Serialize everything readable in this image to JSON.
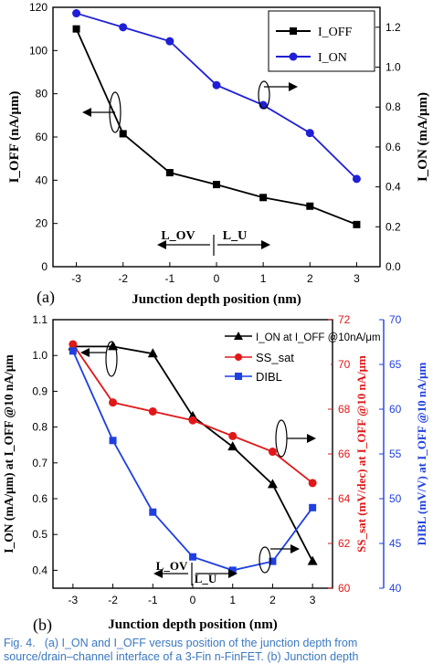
{
  "chart_data": [
    {
      "type": "line",
      "panel_label": "(a)",
      "xlabel": "Junction depth position (nm)",
      "ylabel_left": "I_OFF (nA/μm)",
      "ylabel_right": "I_ON (mA/μm)",
      "x": [
        -3,
        -2,
        -1,
        0,
        1,
        2,
        3
      ],
      "x_ticks": [
        "-3",
        "-2",
        "-1",
        "0",
        "1",
        "2",
        "3"
      ],
      "xlim": [
        -3.5,
        3.5
      ],
      "ylim_left": [
        0,
        120
      ],
      "ylim_right": [
        0,
        1.3
      ],
      "y_ticks_left": [
        "0",
        "20",
        "40",
        "60",
        "80",
        "100",
        "120"
      ],
      "y_ticks_right": [
        "0.0",
        "0.2",
        "0.4",
        "0.6",
        "0.8",
        "1.0",
        "1.2"
      ],
      "series": [
        {
          "name": "I_OFF",
          "axis": "left",
          "color": "#000000",
          "marker": "square",
          "values": [
            110,
            61.5,
            43.5,
            38,
            32,
            28,
            19.5
          ]
        },
        {
          "name": "I_ON",
          "axis": "right",
          "color": "#1f1fd6",
          "marker": "circle",
          "values": [
            1.27,
            1.2,
            1.13,
            0.91,
            0.81,
            0.67,
            0.44
          ]
        }
      ],
      "legend_position": "top-right",
      "annotations": [
        "L_OV",
        "L_U"
      ]
    },
    {
      "type": "line",
      "panel_label": "(b)",
      "xlabel": "Junction depth position (nm)",
      "ylabel_left": "I_ON (mA/μm) at I_OFF @10 nA/μm",
      "ylabel_right1": "SS_sat (mV/dec) at I_OFF @10 nA/μm",
      "ylabel_right2": "DIBL (mV/V) at I_OFF @10 nA/μm",
      "x": [
        -3,
        -2,
        -1,
        0,
        1,
        2,
        3
      ],
      "x_ticks": [
        "-3",
        "-2",
        "-1",
        "0",
        "1",
        "2",
        "3"
      ],
      "xlim": [
        -3.5,
        3.5
      ],
      "ylim_left": [
        0.35,
        1.1
      ],
      "ylim_right1": [
        60,
        72
      ],
      "ylim_right2": [
        40,
        70
      ],
      "y_ticks_left": [
        "0.4",
        "0.5",
        "0.6",
        "0.7",
        "0.8",
        "0.9",
        "1.0",
        "1.1"
      ],
      "y_ticks_right1": [
        "60",
        "62",
        "64",
        "66",
        "68",
        "70",
        "72"
      ],
      "y_ticks_right2": [
        "40",
        "45",
        "50",
        "55",
        "60",
        "65",
        "70"
      ],
      "series": [
        {
          "name": "I_ON at I_OFF @10nA/μm",
          "axis": "left",
          "color": "#000000",
          "marker": "triangle",
          "values": [
            1.025,
            1.025,
            1.005,
            0.83,
            0.745,
            0.64,
            0.425
          ]
        },
        {
          "name": "SS_sat",
          "axis": "right1",
          "color": "#e01818",
          "marker": "circle",
          "values": [
            70.9,
            68.3,
            67.9,
            67.5,
            66.8,
            66.1,
            64.7
          ]
        },
        {
          "name": "DIBL",
          "axis": "right2",
          "color": "#1f3fe0",
          "marker": "square",
          "values": [
            66.5,
            56.5,
            48.5,
            43.5,
            42,
            43,
            49
          ]
        }
      ],
      "legend_position": "top-right",
      "annotations": [
        "L_OV",
        "L_U"
      ]
    }
  ],
  "caption": {
    "label": "Fig. 4.",
    "line1": "(a) I_ON and I_OFF versus position of the junction depth from",
    "line2": "source/drain–channel interface of a 3-Fin n-FinFET. (b) Junction depth"
  }
}
